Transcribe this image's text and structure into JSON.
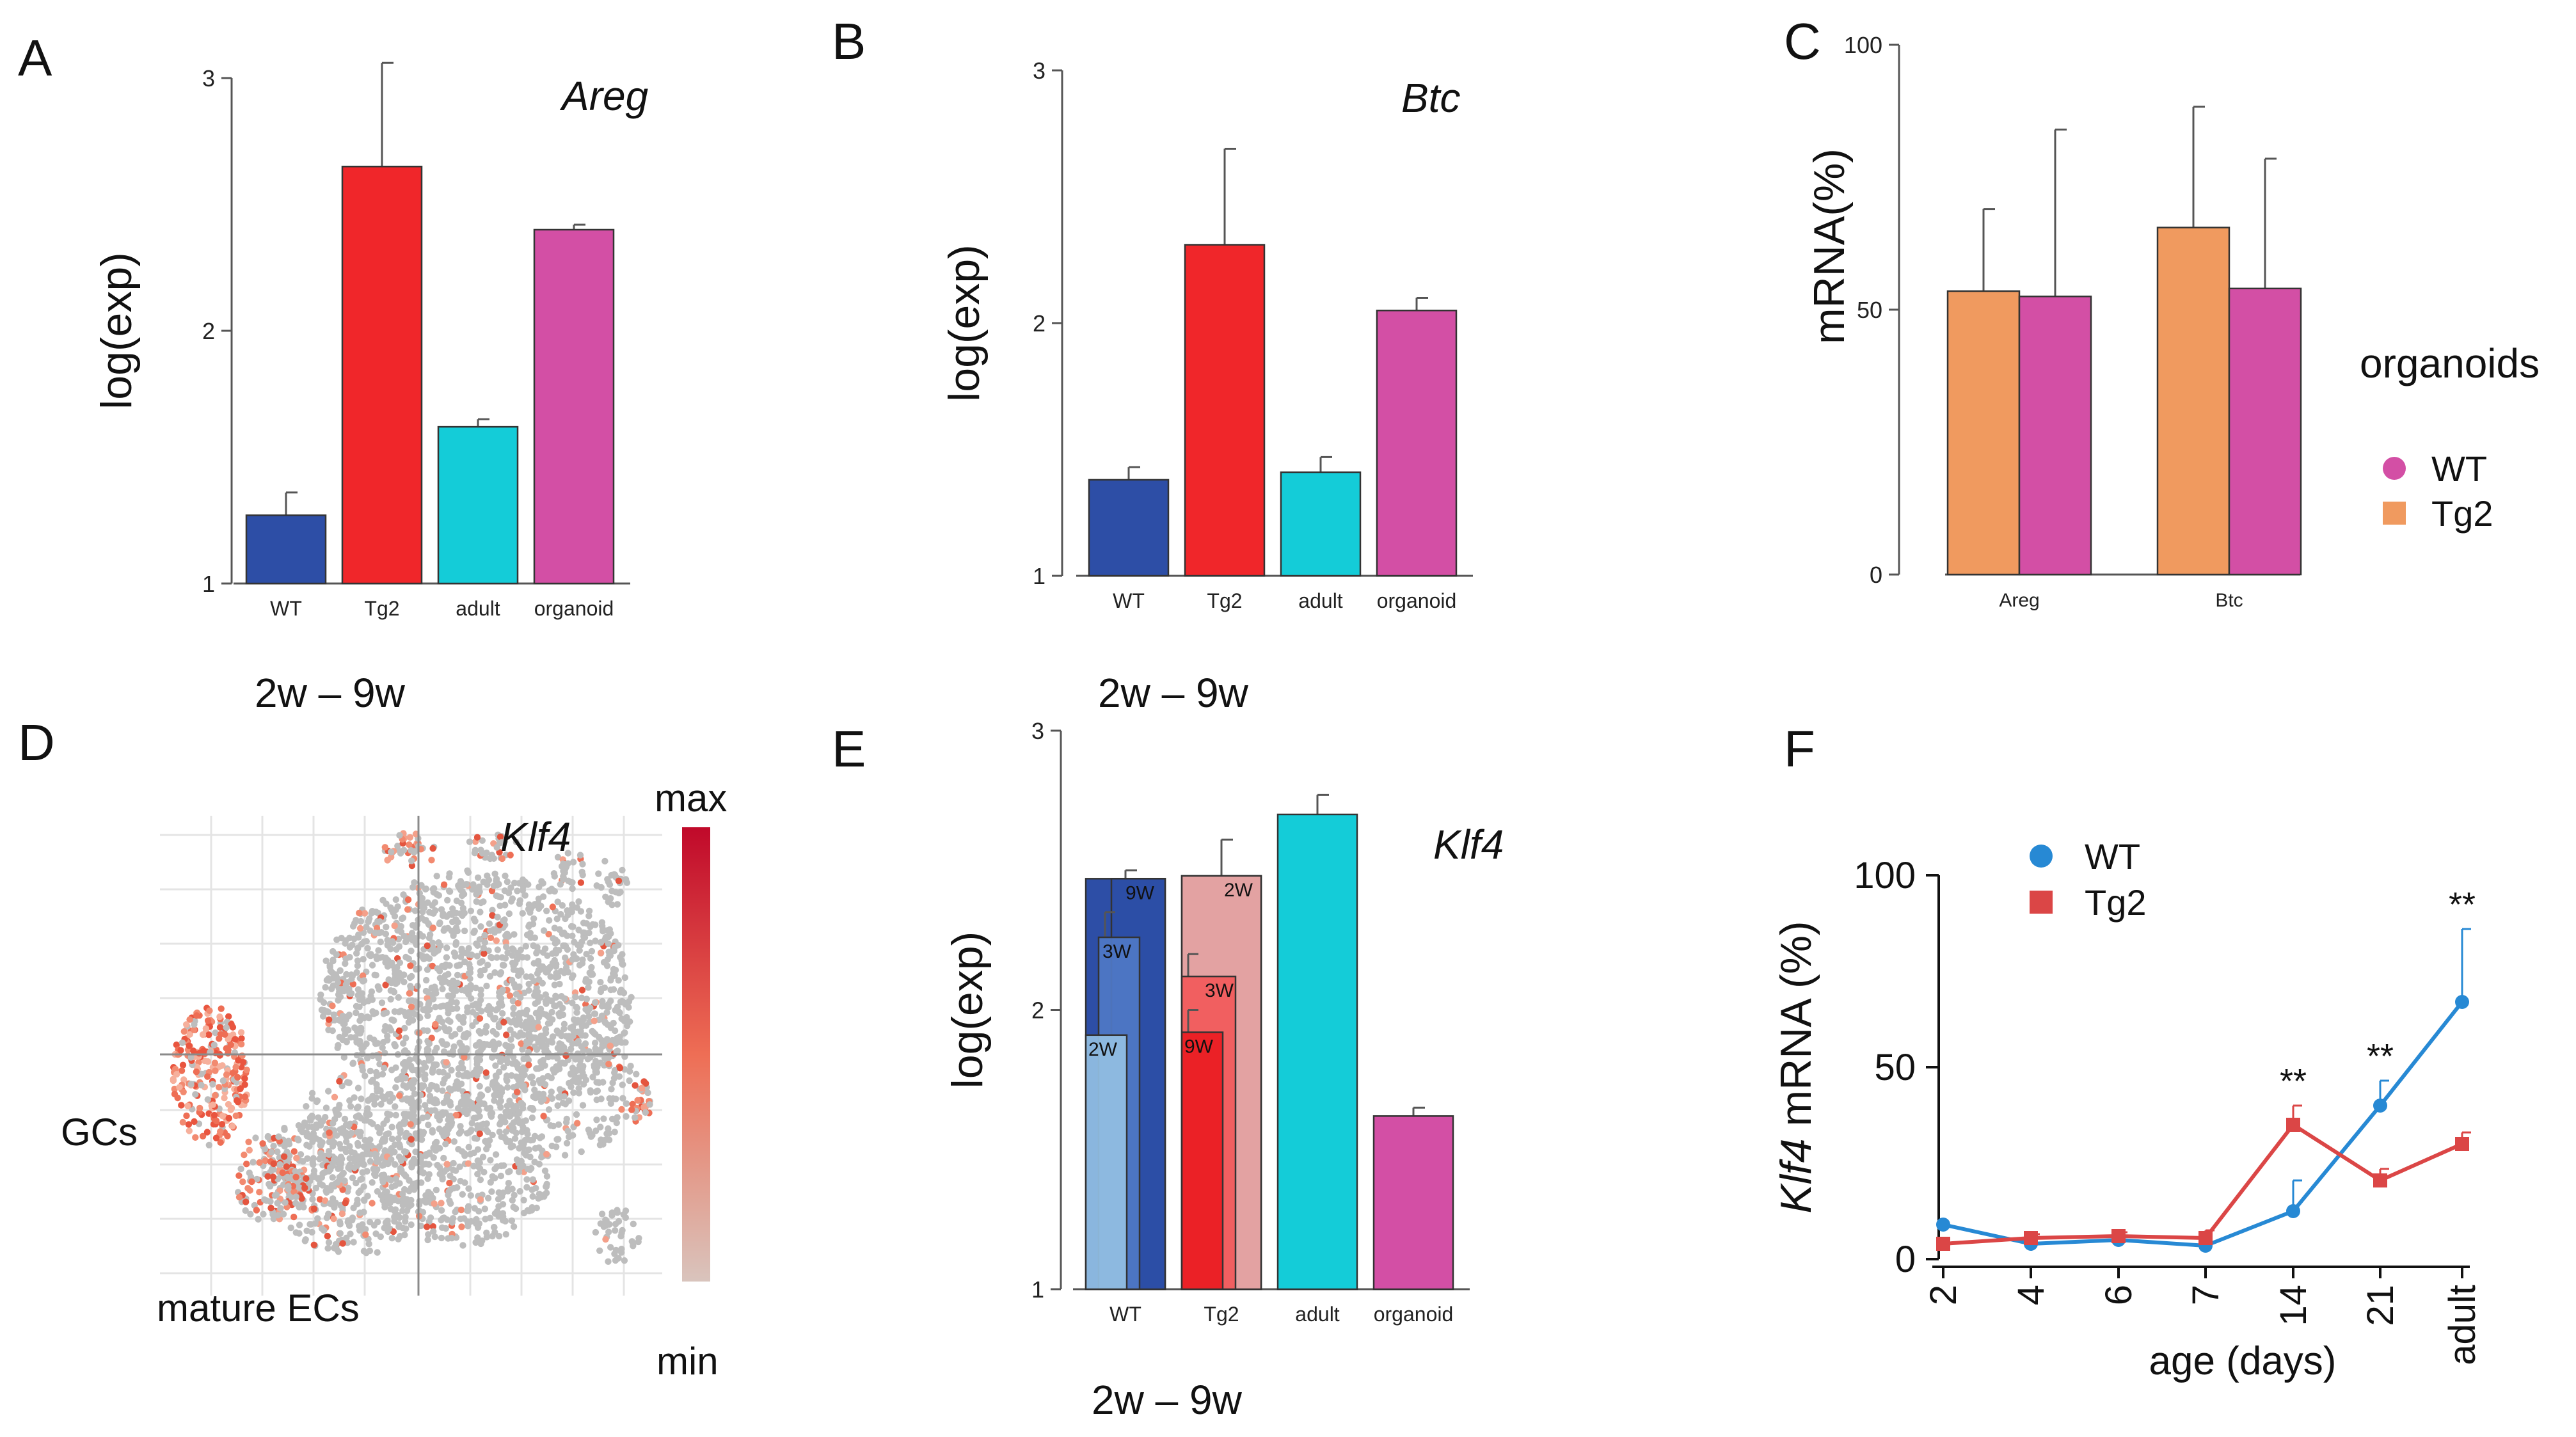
{
  "panels": {
    "A": {
      "label": "A",
      "note": "2w – 9w"
    },
    "B": {
      "label": "B",
      "note": "2w – 9w"
    },
    "C": {
      "label": "C"
    },
    "D": {
      "label": "D",
      "gene": "Klf4",
      "color_max": "max",
      "color_min": "min",
      "cluster_labels": [
        "GCs",
        "mature ECs"
      ],
      "colors": {
        "low": "#d9c4bd",
        "high": "#c0092a",
        "points": "#bdbdbd"
      }
    },
    "E": {
      "label": "E",
      "note": "2w – 9w"
    },
    "F": {
      "label": "F"
    }
  },
  "chart_data": [
    {
      "id": "A",
      "type": "bar",
      "title": "Areg",
      "xlabel": "",
      "ylabel": "log(exp)",
      "ylim": [
        1,
        3
      ],
      "yticks": [
        "1",
        "2",
        "3"
      ],
      "categories": [
        "WT",
        "Tg2",
        "adult",
        "organoid"
      ],
      "values": [
        1.27,
        2.65,
        1.62,
        2.4
      ],
      "errors": [
        0.09,
        0.41,
        0.03,
        0.02
      ],
      "colors": [
        "#2d4ea6",
        "#f0262a",
        "#14ccd8",
        "#d34fa5"
      ]
    },
    {
      "id": "B",
      "type": "bar",
      "title": "Btc",
      "xlabel": "",
      "ylabel": "log(exp)",
      "ylim": [
        1,
        3
      ],
      "yticks": [
        "1",
        "2",
        "3"
      ],
      "categories": [
        "WT",
        "Tg2",
        "adult",
        "organoid"
      ],
      "values": [
        1.38,
        2.31,
        1.41,
        2.05
      ],
      "errors": [
        0.05,
        0.38,
        0.06,
        0.05
      ],
      "colors": [
        "#2d4ea6",
        "#f0262a",
        "#14ccd8",
        "#d34fa5"
      ]
    },
    {
      "id": "C",
      "type": "bar",
      "title": "",
      "xlabel": "",
      "ylabel": "mRNA(%)",
      "ylim": [
        0,
        100
      ],
      "yticks": [
        "0",
        "50",
        "100"
      ],
      "categories": [
        "Areg",
        "Btc"
      ],
      "legend_title": "organoids",
      "series": [
        {
          "name": "Tg2",
          "color": "#f09a5f",
          "values": [
            53.5,
            65.5
          ],
          "errors": [
            15.5,
            22.8
          ]
        },
        {
          "name": "WT",
          "color": "#d34fa5",
          "values": [
            52.5,
            54.0
          ],
          "errors": [
            31.5,
            24.5
          ]
        }
      ],
      "legend_order": [
        "WT",
        "Tg2"
      ]
    },
    {
      "id": "E",
      "type": "bar",
      "title": "Klf4",
      "xlabel": "",
      "ylabel": "log(exp)",
      "ylim": [
        1,
        3
      ],
      "yticks": [
        "1",
        "2",
        "3"
      ],
      "categories": [
        "WT",
        "Tg2",
        "adult",
        "organoid"
      ],
      "values": [
        2.47,
        2.48,
        2.7,
        1.62
      ],
      "errors": [
        0.03,
        0.13,
        0.07,
        0.03
      ],
      "colors": [
        "#2d4ea6",
        "#e3a2a2",
        "#14ccd8",
        "#d34fa5"
      ],
      "sub_bars": [
        {
          "category": "WT",
          "label": "2W",
          "value": 1.91,
          "color": "#93bfe3"
        },
        {
          "category": "WT",
          "label": "3W",
          "value": 2.26,
          "color": "#4f78c6",
          "error": 0.09
        },
        {
          "category": "WT",
          "label": "9W",
          "value": 2.47,
          "color": "#2d4ea6"
        },
        {
          "category": "Tg2",
          "label": "2W",
          "value": 2.48,
          "color": "#e3a2a2"
        },
        {
          "category": "Tg2",
          "label": "3W",
          "value": 2.12,
          "color": "#f2595a",
          "error": 0.08
        },
        {
          "category": "Tg2",
          "label": "9W",
          "value": 1.92,
          "color": "#ea1c22",
          "error": 0.08
        }
      ]
    },
    {
      "id": "F",
      "type": "line",
      "title": "",
      "xlabel": "age (days)",
      "ylabel_gene": "Klf4",
      "ylabel": " mRNA (%)",
      "ylim": [
        0,
        100
      ],
      "yticks": [
        "0",
        "50",
        "100"
      ],
      "x": [
        "2",
        "4",
        "6",
        "7",
        "14",
        "21",
        "adult"
      ],
      "series": [
        {
          "name": "WT",
          "color": "#2789d4",
          "marker": "circle",
          "values": [
            9,
            4,
            5,
            3.5,
            12.5,
            40,
            67
          ],
          "errors": [
            0,
            0,
            0,
            0,
            8,
            6.5,
            19
          ]
        },
        {
          "name": "Tg2",
          "color": "#db4646",
          "marker": "square",
          "values": [
            4,
            5.5,
            6,
            5.5,
            35,
            20.5,
            30
          ],
          "errors": [
            0,
            1,
            1,
            2,
            5,
            3,
            3
          ]
        }
      ],
      "annotations": [
        {
          "x": "14",
          "text": "**"
        },
        {
          "x": "21",
          "text": "**"
        },
        {
          "x": "adult",
          "text": "**"
        }
      ]
    }
  ]
}
